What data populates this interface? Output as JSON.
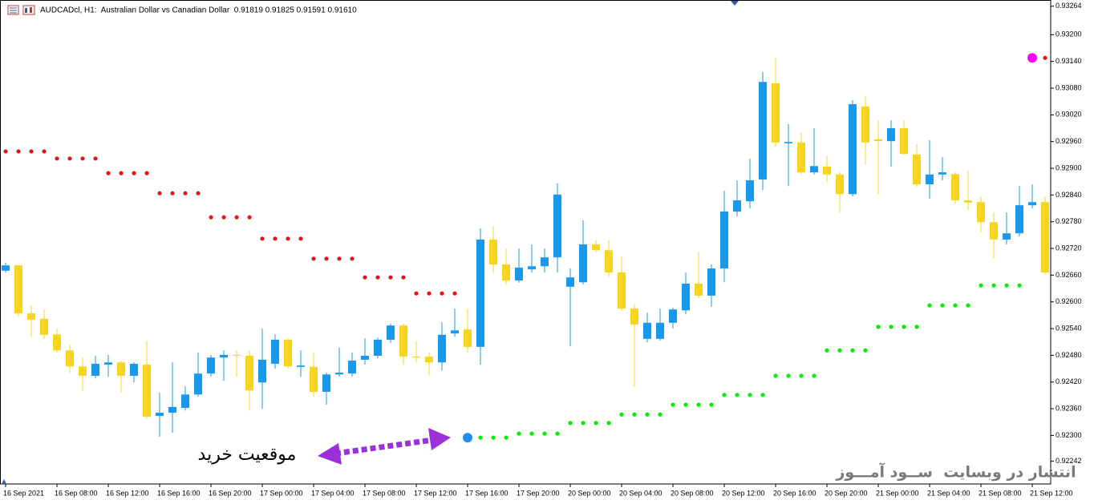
{
  "chart_data": {
    "type": "candlestick",
    "title": "AUDCADcl, H1:  Australian Dollar vs Canadian Dollar  0.91819 0.91825 0.91591 0.91610",
    "annotation": "موقعیت خرید",
    "watermark": "انتشار در وبسایت  ســود آمـــوز",
    "up_color": "#1a98f0",
    "down_color": "#f7d51e",
    "categories": [
      "16 Sep 2021",
      null,
      null,
      null,
      "16 Sep 08:00",
      null,
      null,
      null,
      "16 Sep 12:00",
      null,
      null,
      null,
      "16 Sep 16:00",
      null,
      null,
      null,
      "16 Sep 20:00",
      null,
      null,
      null,
      "17 Sep 00:00",
      null,
      null,
      null,
      "17 Sep 04:00",
      null,
      null,
      null,
      "17 Sep 08:00",
      null,
      null,
      null,
      "17 Sep 12:00",
      null,
      null,
      null,
      "17 Sep 16:00",
      null,
      null,
      null,
      "17 Sep 20:00",
      null,
      null,
      null,
      "20 Sep 00:00",
      null,
      null,
      null,
      "20 Sep 04:00",
      null,
      null,
      null,
      "20 Sep 08:00",
      null,
      null,
      null,
      "20 Sep 12:00",
      null,
      null,
      null,
      "20 Sep 16:00",
      null,
      null,
      null,
      "20 Sep 20:00",
      null,
      null,
      null,
      "21 Sep 00:00",
      null,
      null,
      null,
      "21 Sep 04:00",
      null,
      null,
      null,
      "21 Sep 08:00",
      null,
      null,
      null,
      "21 Sep 12:00",
      null
    ],
    "open": [
      0.9267,
      0.92682,
      0.92574,
      0.92562,
      0.92527,
      0.92491,
      0.92455,
      0.92434,
      0.92459,
      0.92464,
      0.92434,
      0.92459,
      0.92344,
      0.92351,
      0.92362,
      0.92392,
      0.92439,
      0.92475,
      0.92481,
      0.92479,
      0.92419,
      0.92461,
      0.92515,
      0.92454,
      0.92454,
      0.92398,
      0.92437,
      0.92439,
      0.9247,
      0.92479,
      0.92515,
      0.92547,
      0.92477,
      0.92477,
      0.92464,
      0.92529,
      0.92538,
      0.92499,
      0.9274,
      0.92684,
      0.92648,
      0.92673,
      0.9268,
      0.927,
      0.92634,
      0.92644,
      0.92729,
      0.92716,
      0.92666,
      0.92585,
      0.92517,
      0.92517,
      0.92553,
      0.92581,
      0.92641,
      0.92614,
      0.92675,
      0.92803,
      0.92826,
      0.92875,
      0.93091,
      0.92956,
      0.92958,
      0.92891,
      0.92904,
      0.92886,
      0.92842,
      0.93039,
      0.92965,
      0.92961,
      0.9299,
      0.92931,
      0.92864,
      0.92886,
      0.92887,
      0.92828,
      0.92824,
      0.92779,
      0.9274,
      0.92754,
      0.92817,
      0.92824
    ],
    "high": [
      0.92688,
      0.92682,
      0.92592,
      0.92583,
      0.9254,
      0.92504,
      0.92475,
      0.92479,
      0.92481,
      0.92468,
      0.92464,
      0.92513,
      0.92396,
      0.92464,
      0.9241,
      0.92486,
      0.92481,
      0.92491,
      0.92491,
      0.92491,
      0.9254,
      0.92527,
      0.92518,
      0.92491,
      0.92486,
      0.92441,
      0.92497,
      0.92486,
      0.92518,
      0.9252,
      0.92551,
      0.92551,
      0.92513,
      0.92486,
      0.92554,
      0.92585,
      0.92585,
      0.92765,
      0.92769,
      0.9272,
      0.9272,
      0.92729,
      0.9272,
      0.92866,
      0.92675,
      0.92783,
      0.92738,
      0.92738,
      0.92702,
      0.92594,
      0.92576,
      0.92585,
      0.92587,
      0.92666,
      0.92711,
      0.92684,
      0.9285,
      0.92873,
      0.92922,
      0.93116,
      0.93148,
      0.92999,
      0.92981,
      0.9299,
      0.92927,
      0.92891,
      0.93053,
      0.93062,
      0.93008,
      0.93008,
      0.93008,
      0.92954,
      0.92963,
      0.92925,
      0.92891,
      0.92895,
      0.92837,
      0.92801,
      0.92801,
      0.9286,
      0.92864,
      0.92837
    ],
    "low": [
      0.92666,
      0.92567,
      0.92522,
      0.92517,
      0.92486,
      0.92441,
      0.924,
      0.92428,
      0.92432,
      0.92396,
      0.92419,
      0.92338,
      0.92297,
      0.92306,
      0.92356,
      0.92387,
      0.92432,
      0.92423,
      0.92432,
      0.92356,
      0.9236,
      0.9245,
      0.9245,
      0.92432,
      0.92387,
      0.92369,
      0.92432,
      0.92432,
      0.92459,
      0.92473,
      0.92508,
      0.92459,
      0.92464,
      0.92436,
      0.92446,
      0.92522,
      0.92486,
      0.92459,
      0.92666,
      0.92639,
      0.92643,
      0.92666,
      0.92666,
      0.92666,
      0.925,
      0.92639,
      0.92711,
      0.92657,
      0.9258,
      0.92409,
      0.92509,
      0.92513,
      0.9254,
      0.92572,
      0.92608,
      0.92589,
      0.92644,
      0.92792,
      0.9281,
      0.92851,
      0.92949,
      0.9286,
      0.92887,
      0.92886,
      0.92869,
      0.92801,
      0.92837,
      0.92909,
      0.92842,
      0.92904,
      0.92931,
      0.92859,
      0.92832,
      0.92873,
      0.92819,
      0.92806,
      0.92756,
      0.92698,
      0.92729,
      0.92747,
      0.9281,
      0.92661
    ],
    "close": [
      0.92682,
      0.92574,
      0.9256,
      0.92526,
      0.92491,
      0.92455,
      0.92434,
      0.92461,
      0.92464,
      0.92434,
      0.92461,
      0.92342,
      0.92351,
      0.92364,
      0.92392,
      0.92439,
      0.92475,
      0.92481,
      0.92479,
      0.92401,
      0.9247,
      0.92515,
      0.92455,
      0.92457,
      0.92398,
      0.92437,
      0.92441,
      0.92468,
      0.92479,
      0.92515,
      0.92547,
      0.92477,
      0.92475,
      0.92464,
      0.92526,
      0.92536,
      0.92499,
      0.9274,
      0.92684,
      0.92648,
      0.92677,
      0.9268,
      0.927,
      0.92841,
      0.92655,
      0.92729,
      0.92716,
      0.92666,
      0.92585,
      0.92549,
      0.92553,
      0.92553,
      0.92583,
      0.92641,
      0.92614,
      0.92675,
      0.92803,
      0.92828,
      0.92873,
      0.93094,
      0.92958,
      0.92959,
      0.92891,
      0.92905,
      0.92886,
      0.92842,
      0.93044,
      0.92958,
      0.92961,
      0.9299,
      0.92932,
      0.92864,
      0.92886,
      0.92891,
      0.92828,
      0.92823,
      0.92779,
      0.9274,
      0.92754,
      0.92817,
      0.92824,
      0.92666
    ],
    "dots": [
      {
        "color": "#e8141c",
        "marker": "small",
        "values": [
          0.92938,
          0.92938,
          0.92938,
          0.92938,
          0.92922,
          0.92922,
          0.92922,
          0.92922,
          0.92889,
          0.92889,
          0.92889,
          0.92889,
          0.92844,
          0.92844,
          0.92844,
          0.92844,
          0.9279,
          0.9279,
          0.9279,
          0.9279,
          0.92742,
          0.92742,
          0.92742,
          0.92742,
          0.92697,
          0.92697,
          0.92697,
          0.92697,
          0.92655,
          0.92655,
          0.92655,
          0.92655,
          0.92619,
          0.92619,
          0.92619,
          0.92619,
          null,
          null,
          null,
          null,
          null,
          null,
          null,
          null,
          null,
          null,
          null,
          null,
          null,
          null,
          null,
          null,
          null,
          null,
          null,
          null,
          null,
          null,
          null,
          null,
          null,
          null,
          null,
          null,
          null,
          null,
          null,
          null,
          null,
          null,
          null,
          null,
          null,
          null,
          null,
          null,
          null,
          null,
          null,
          null,
          null,
          0.93148
        ]
      },
      {
        "color": "#00f000",
        "marker": "small",
        "values": [
          null,
          null,
          null,
          null,
          null,
          null,
          null,
          null,
          null,
          null,
          null,
          null,
          null,
          null,
          null,
          null,
          null,
          null,
          null,
          null,
          null,
          null,
          null,
          null,
          null,
          null,
          null,
          null,
          null,
          null,
          null,
          null,
          null,
          null,
          null,
          null,
          null,
          0.92295,
          0.92295,
          0.92295,
          0.92304,
          0.92304,
          0.92304,
          0.92304,
          0.92328,
          0.92328,
          0.92328,
          0.92328,
          0.92347,
          0.92347,
          0.92347,
          0.92347,
          0.92369,
          0.92369,
          0.92369,
          0.92369,
          0.92391,
          0.92391,
          0.92391,
          0.92391,
          0.92434,
          0.92434,
          0.92434,
          0.92434,
          0.92491,
          0.92491,
          0.92491,
          0.92491,
          0.92544,
          0.92544,
          0.92544,
          0.92544,
          0.92592,
          0.92592,
          0.92592,
          0.92592,
          0.92637,
          0.92637,
          0.92637,
          0.92637,
          null,
          null
        ]
      },
      {
        "color": "#1e8ff0",
        "marker": "large",
        "values": [
          null,
          null,
          null,
          null,
          null,
          null,
          null,
          null,
          null,
          null,
          null,
          null,
          null,
          null,
          null,
          null,
          null,
          null,
          null,
          null,
          null,
          null,
          null,
          null,
          null,
          null,
          null,
          null,
          null,
          null,
          null,
          null,
          null,
          null,
          null,
          null,
          0.92295,
          null,
          null,
          null,
          null,
          null,
          null,
          null,
          null,
          null,
          null,
          null,
          null,
          null,
          null,
          null,
          null,
          null,
          null,
          null,
          null,
          null,
          null,
          null,
          null,
          null,
          null,
          null,
          null,
          null,
          null,
          null,
          null,
          null,
          null,
          null,
          null,
          null,
          null,
          null,
          null,
          null,
          null,
          null,
          null,
          null
        ]
      },
      {
        "color": "#ff00ff",
        "marker": "large",
        "values": [
          null,
          null,
          null,
          null,
          null,
          null,
          null,
          null,
          null,
          null,
          null,
          null,
          null,
          null,
          null,
          null,
          null,
          null,
          null,
          null,
          null,
          null,
          null,
          null,
          null,
          null,
          null,
          null,
          null,
          null,
          null,
          null,
          null,
          null,
          null,
          null,
          null,
          null,
          null,
          null,
          null,
          null,
          null,
          null,
          null,
          null,
          null,
          null,
          null,
          null,
          null,
          null,
          null,
          null,
          null,
          null,
          null,
          null,
          null,
          null,
          null,
          null,
          null,
          null,
          null,
          null,
          null,
          null,
          null,
          null,
          null,
          null,
          null,
          null,
          null,
          null,
          null,
          null,
          null,
          null,
          0.93148,
          null
        ]
      }
    ],
    "ylim": [
      0.92191,
      0.93278
    ],
    "yticks": [
      0.93264,
      {
        "value": 0.932,
        "label": "0.93200"
      },
      {
        "value": 0.9314,
        "label": "0.93140"
      },
      {
        "value": 0.9308,
        "label": "0.93080"
      },
      {
        "value": 0.9302,
        "label": "0.93020"
      },
      {
        "value": 0.9296,
        "label": "0.92960"
      },
      {
        "value": 0.929,
        "label": "0.92900"
      },
      {
        "value": 0.9284,
        "label": "0.92840"
      },
      {
        "value": 0.9278,
        "label": "0.92780"
      },
      {
        "value": 0.9272,
        "label": "0.92720"
      },
      {
        "value": 0.9266,
        "label": "0.92660"
      },
      {
        "value": 0.926,
        "label": "0.92600"
      },
      {
        "value": 0.9254,
        "label": "0.92540"
      },
      {
        "value": 0.9248,
        "label": "0.92480"
      },
      {
        "value": 0.9242,
        "label": "0.92420"
      },
      {
        "value": 0.9236,
        "label": "0.92360"
      },
      {
        "value": 0.923,
        "label": "0.92300"
      },
      0.92242
    ],
    "grid": false
  }
}
